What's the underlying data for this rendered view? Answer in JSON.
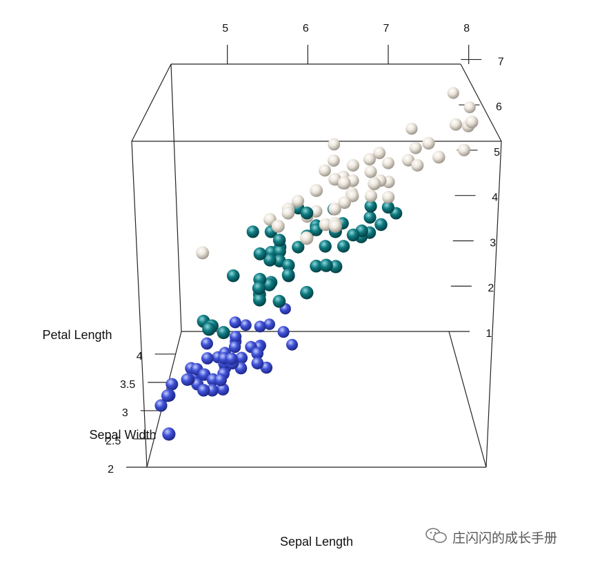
{
  "chart_data": {
    "type": "scatter",
    "title": "",
    "axes": {
      "x": {
        "label": "Sepal Length",
        "ticks": [
          "5",
          "6",
          "7",
          "8"
        ]
      },
      "y": {
        "label": "Sepal Width",
        "ticks": [
          "2",
          "2.5",
          "3",
          "3.5",
          "4"
        ]
      },
      "z": {
        "label": "Petal Length",
        "ticks": [
          "1",
          "2",
          "3",
          "4",
          "5",
          "6",
          "7"
        ]
      }
    },
    "xlim": [
      4.3,
      7.9
    ],
    "ylim": [
      2.0,
      4.4
    ],
    "zlim": [
      1.0,
      6.9
    ],
    "grid": false,
    "colors": {
      "setosa": "#3f51d6",
      "versicolor": "#0e7a80",
      "virginica": "#ece6dc"
    },
    "series": [
      {
        "values": [
          [
            5.1,
            3.5,
            1.4
          ],
          [
            4.9,
            3.0,
            1.4
          ],
          [
            4.7,
            3.2,
            1.3
          ],
          [
            4.6,
            3.1,
            1.5
          ],
          [
            5.0,
            3.6,
            1.4
          ],
          [
            5.4,
            3.9,
            1.7
          ],
          [
            4.6,
            3.4,
            1.4
          ],
          [
            5.0,
            3.4,
            1.5
          ],
          [
            4.4,
            2.9,
            1.4
          ],
          [
            4.9,
            3.1,
            1.5
          ],
          [
            5.4,
            3.7,
            1.5
          ],
          [
            4.8,
            3.4,
            1.6
          ],
          [
            4.8,
            3.0,
            1.4
          ],
          [
            4.3,
            3.0,
            1.1
          ],
          [
            5.8,
            4.0,
            1.2
          ],
          [
            5.7,
            4.4,
            1.5
          ],
          [
            5.4,
            3.9,
            1.3
          ],
          [
            5.1,
            3.5,
            1.4
          ],
          [
            5.7,
            3.8,
            1.7
          ],
          [
            5.1,
            3.8,
            1.5
          ],
          [
            5.4,
            3.4,
            1.7
          ],
          [
            5.1,
            3.7,
            1.5
          ],
          [
            4.6,
            3.6,
            1.0
          ],
          [
            5.1,
            3.3,
            1.7
          ],
          [
            4.8,
            3.4,
            1.9
          ],
          [
            5.0,
            3.0,
            1.6
          ],
          [
            5.0,
            3.4,
            1.6
          ],
          [
            5.2,
            3.5,
            1.5
          ],
          [
            5.2,
            3.4,
            1.4
          ],
          [
            4.7,
            3.2,
            1.6
          ],
          [
            4.8,
            3.1,
            1.6
          ],
          [
            5.4,
            3.4,
            1.5
          ],
          [
            5.2,
            4.1,
            1.5
          ],
          [
            5.5,
            4.2,
            1.4
          ],
          [
            4.9,
            3.1,
            1.5
          ],
          [
            5.0,
            3.2,
            1.2
          ],
          [
            5.5,
            3.5,
            1.3
          ],
          [
            4.9,
            3.6,
            1.4
          ],
          [
            4.4,
            3.0,
            1.3
          ],
          [
            5.1,
            3.4,
            1.5
          ],
          [
            5.0,
            3.5,
            1.3
          ],
          [
            4.5,
            2.3,
            1.3
          ],
          [
            4.4,
            3.2,
            1.3
          ],
          [
            5.0,
            3.5,
            1.6
          ],
          [
            5.1,
            3.8,
            1.9
          ],
          [
            4.8,
            3.0,
            1.4
          ],
          [
            5.1,
            3.8,
            1.6
          ],
          [
            4.6,
            3.2,
            1.4
          ],
          [
            5.3,
            3.7,
            1.5
          ],
          [
            5.0,
            3.3,
            1.4
          ]
        ]
      },
      {
        "values": [
          [
            7.0,
            3.2,
            4.7
          ],
          [
            6.4,
            3.2,
            4.5
          ],
          [
            6.9,
            3.1,
            4.9
          ],
          [
            5.5,
            2.3,
            4.0
          ],
          [
            6.5,
            2.8,
            4.6
          ],
          [
            5.7,
            2.8,
            4.5
          ],
          [
            6.3,
            3.3,
            4.7
          ],
          [
            4.9,
            2.4,
            3.3
          ],
          [
            6.6,
            2.9,
            4.6
          ],
          [
            5.2,
            2.7,
            3.9
          ],
          [
            5.0,
            2.0,
            3.5
          ],
          [
            5.9,
            3.0,
            4.2
          ],
          [
            6.0,
            2.2,
            4.0
          ],
          [
            6.1,
            2.9,
            4.7
          ],
          [
            5.6,
            2.9,
            3.6
          ],
          [
            6.7,
            3.1,
            4.4
          ],
          [
            5.6,
            3.0,
            4.5
          ],
          [
            5.8,
            2.7,
            4.1
          ],
          [
            6.2,
            2.2,
            4.5
          ],
          [
            5.6,
            2.5,
            3.9
          ],
          [
            5.9,
            3.2,
            4.8
          ],
          [
            6.1,
            2.8,
            4.0
          ],
          [
            6.3,
            2.5,
            4.9
          ],
          [
            6.1,
            2.8,
            4.7
          ],
          [
            6.4,
            2.9,
            4.3
          ],
          [
            6.6,
            3.0,
            4.4
          ],
          [
            6.8,
            2.8,
            4.8
          ],
          [
            6.7,
            3.0,
            5.0
          ],
          [
            6.0,
            2.9,
            4.5
          ],
          [
            5.7,
            2.6,
            3.5
          ],
          [
            5.5,
            2.4,
            3.8
          ],
          [
            5.5,
            2.4,
            3.7
          ],
          [
            5.8,
            2.7,
            3.9
          ],
          [
            6.0,
            2.7,
            5.1
          ],
          [
            5.4,
            3.0,
            4.5
          ],
          [
            6.0,
            3.4,
            4.5
          ],
          [
            6.7,
            3.1,
            4.7
          ],
          [
            6.3,
            2.3,
            4.4
          ],
          [
            5.6,
            3.0,
            4.1
          ],
          [
            5.5,
            2.5,
            4.0
          ],
          [
            5.5,
            2.6,
            4.4
          ],
          [
            6.1,
            3.0,
            4.6
          ],
          [
            5.8,
            2.6,
            4.0
          ],
          [
            5.0,
            2.3,
            3.3
          ],
          [
            5.6,
            2.7,
            4.2
          ],
          [
            5.7,
            3.0,
            4.2
          ],
          [
            5.7,
            2.9,
            4.2
          ],
          [
            6.2,
            2.9,
            4.3
          ],
          [
            5.1,
            2.5,
            3.0
          ],
          [
            5.7,
            2.8,
            4.1
          ]
        ]
      },
      {
        "values": [
          [
            6.3,
            3.3,
            6.0
          ],
          [
            5.8,
            2.7,
            5.1
          ],
          [
            7.1,
            3.0,
            5.9
          ],
          [
            6.3,
            2.9,
            5.6
          ],
          [
            6.5,
            3.0,
            5.8
          ],
          [
            7.6,
            3.0,
            6.6
          ],
          [
            4.9,
            2.5,
            4.5
          ],
          [
            7.3,
            2.9,
            6.3
          ],
          [
            6.7,
            2.5,
            5.8
          ],
          [
            7.2,
            3.6,
            6.1
          ],
          [
            6.5,
            3.2,
            5.1
          ],
          [
            6.4,
            2.7,
            5.3
          ],
          [
            6.8,
            3.0,
            5.5
          ],
          [
            5.7,
            2.5,
            5.0
          ],
          [
            5.8,
            2.8,
            5.1
          ],
          [
            6.4,
            3.2,
            5.3
          ],
          [
            6.5,
            3.0,
            5.5
          ],
          [
            7.7,
            3.8,
            6.7
          ],
          [
            7.7,
            2.6,
            6.9
          ],
          [
            6.0,
            2.2,
            5.0
          ],
          [
            6.9,
            3.2,
            5.7
          ],
          [
            5.6,
            2.8,
            4.9
          ],
          [
            7.7,
            2.8,
            6.7
          ],
          [
            6.3,
            2.7,
            4.9
          ],
          [
            6.7,
            3.3,
            5.7
          ],
          [
            7.2,
            3.2,
            6.0
          ],
          [
            6.2,
            2.8,
            4.8
          ],
          [
            6.1,
            3.0,
            4.9
          ],
          [
            6.4,
            2.8,
            5.6
          ],
          [
            7.2,
            3.0,
            5.8
          ],
          [
            7.4,
            2.8,
            6.1
          ],
          [
            7.9,
            3.8,
            6.4
          ],
          [
            6.4,
            2.8,
            5.6
          ],
          [
            6.3,
            2.8,
            5.1
          ],
          [
            6.1,
            2.6,
            5.6
          ],
          [
            7.7,
            3.0,
            6.1
          ],
          [
            6.3,
            3.4,
            5.6
          ],
          [
            6.4,
            3.1,
            5.5
          ],
          [
            6.0,
            3.0,
            4.8
          ],
          [
            6.9,
            3.1,
            5.4
          ],
          [
            6.7,
            3.1,
            5.6
          ],
          [
            6.9,
            3.1,
            5.1
          ],
          [
            5.8,
            2.7,
            5.1
          ],
          [
            6.8,
            3.2,
            5.9
          ],
          [
            6.7,
            3.3,
            5.7
          ],
          [
            6.7,
            3.0,
            5.2
          ],
          [
            6.3,
            2.5,
            5.0
          ],
          [
            6.5,
            3.0,
            5.2
          ],
          [
            6.2,
            3.4,
            5.4
          ],
          [
            5.9,
            3.0,
            5.1
          ]
        ]
      }
    ]
  },
  "watermark": {
    "text": "庄闪闪的成长手册",
    "icon": "wechat-icon"
  }
}
